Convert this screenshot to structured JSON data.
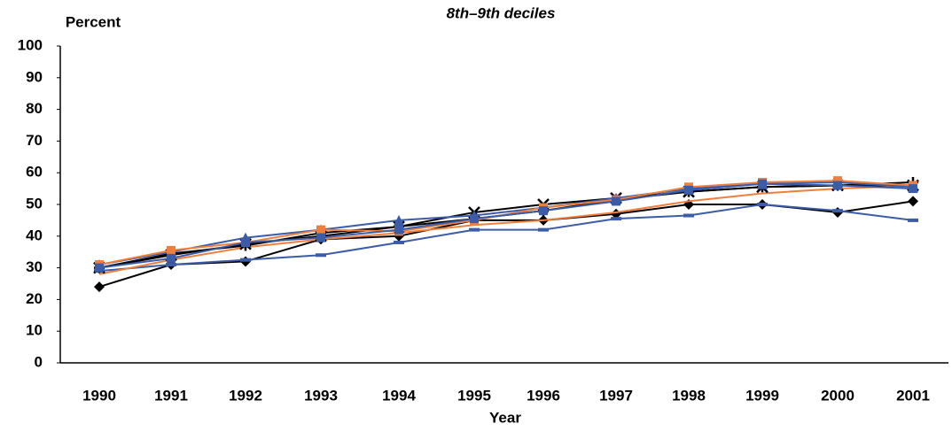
{
  "chart_data": {
    "type": "line",
    "title": "8th–9th deciles",
    "y_label": "Percent",
    "x_label": "Year",
    "categories": [
      "1990",
      "1991",
      "1992",
      "1993",
      "1994",
      "1995",
      "1996",
      "1997",
      "1998",
      "1999",
      "2000",
      "2001"
    ],
    "ylim": [
      0,
      100
    ],
    "yticks": [
      0,
      10,
      20,
      30,
      40,
      50,
      60,
      70,
      80,
      90,
      100
    ],
    "grid": false,
    "series": [
      {
        "color": "#000000",
        "marker": "diamond",
        "values": [
          24,
          31,
          32,
          39,
          40,
          45,
          45,
          47,
          50,
          50,
          47.5,
          51
        ]
      },
      {
        "color": "#3c5ca8",
        "marker": "dash",
        "values": [
          29,
          31,
          32.5,
          34,
          38,
          42,
          42,
          45.5,
          46.5,
          50,
          48,
          45
        ]
      },
      {
        "color": "#f07f3c",
        "marker": "none",
        "values": [
          28,
          32.5,
          36.5,
          39,
          41,
          43.5,
          45,
          47.5,
          51,
          53.5,
          55,
          56
        ]
      },
      {
        "color": "#000000",
        "marker": "x",
        "values": [
          30,
          34,
          37.5,
          40,
          43,
          47.5,
          50,
          52,
          54,
          55.5,
          56,
          56
        ]
      },
      {
        "color": "#000000",
        "marker": "plus",
        "values": [
          30,
          34.5,
          37,
          41,
          43,
          45.5,
          48,
          51.5,
          54,
          55.5,
          56,
          57
        ]
      },
      {
        "color": "#3c5ca8",
        "marker": "triangle",
        "values": [
          31,
          35,
          39.5,
          42,
          45,
          46.5,
          49,
          52,
          55,
          56.5,
          57,
          55.5
        ]
      },
      {
        "color": "#f07f3c",
        "marker": "square",
        "values": [
          31,
          35.5,
          38,
          42,
          41.5,
          45,
          49,
          51.5,
          55.5,
          57,
          57.5,
          56
        ]
      },
      {
        "color": "#3c5ca8",
        "marker": "square",
        "values": [
          30,
          33,
          38,
          39.5,
          42,
          45.5,
          48,
          51,
          54.5,
          56.5,
          56,
          55
        ]
      }
    ]
  }
}
